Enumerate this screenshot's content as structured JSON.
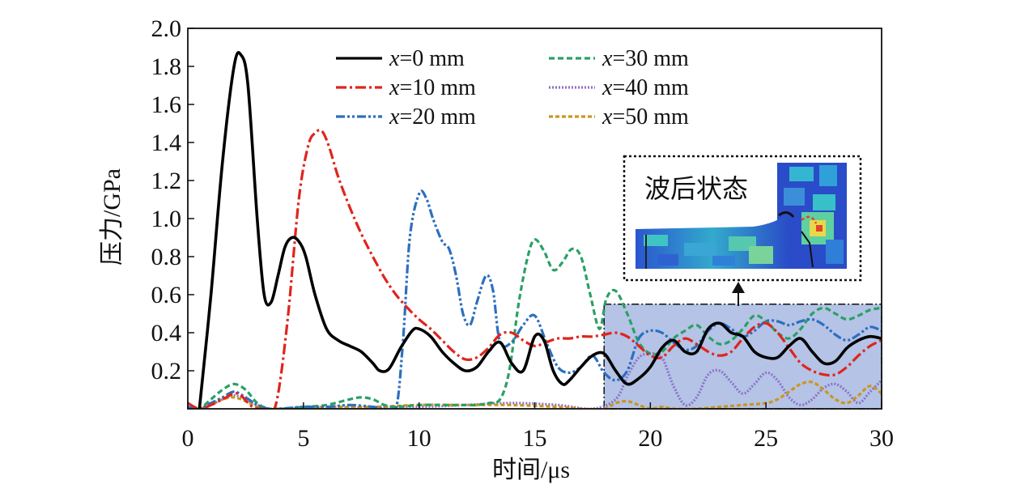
{
  "chart_data": {
    "type": "line",
    "xlabel": "时间/μs",
    "ylabel": "压力/GPa",
    "xlim": [
      0,
      30
    ],
    "ylim": [
      0,
      2.0
    ],
    "x_ticks": [
      "0",
      "5",
      "10",
      "15",
      "20",
      "25",
      "30"
    ],
    "y_ticks": [
      "0.2",
      "0.4",
      "0.6",
      "0.8",
      "1.0",
      "1.2",
      "1.4",
      "1.6",
      "1.8",
      "2.0"
    ],
    "grid": false,
    "legend_position": "top",
    "legend_var": "x",
    "legend_unit": "mm",
    "highlight_region": {
      "x": [
        18,
        30
      ],
      "y": [
        0,
        0.55
      ],
      "color": "#b4c3e6"
    },
    "inset_label": "波后状态",
    "series": [
      {
        "name": "x=0 mm",
        "value": "0",
        "color": "#000000",
        "dash": "solid",
        "x": [
          0.5,
          1.0,
          1.5,
          2.0,
          2.3,
          2.6,
          3.0,
          3.3,
          3.6,
          3.9,
          4.2,
          4.5,
          4.8,
          5.1,
          5.5,
          6.0,
          6.5,
          7.0,
          7.5,
          8.0,
          8.3,
          8.7,
          9.2,
          9.7,
          10.0,
          10.5,
          11.0,
          11.5,
          12.0,
          12.5,
          13.0,
          13.5,
          14.0,
          14.5,
          15.0,
          15.4,
          15.8,
          16.2,
          16.5,
          17.0,
          17.5,
          18.0,
          18.5,
          19.0,
          19.5,
          20.0,
          20.5,
          21.0,
          21.5,
          22.0,
          22.5,
          23.0,
          23.5,
          24.0,
          24.5,
          25.0,
          25.5,
          26.0,
          26.5,
          27.0,
          27.5,
          28.0,
          28.5,
          29.0,
          29.5,
          30.0
        ],
        "y": [
          0.0,
          0.6,
          1.3,
          1.8,
          1.86,
          1.7,
          1.0,
          0.6,
          0.56,
          0.7,
          0.85,
          0.9,
          0.88,
          0.8,
          0.6,
          0.42,
          0.36,
          0.33,
          0.3,
          0.24,
          0.2,
          0.21,
          0.32,
          0.41,
          0.42,
          0.38,
          0.3,
          0.24,
          0.2,
          0.22,
          0.3,
          0.35,
          0.24,
          0.2,
          0.38,
          0.36,
          0.2,
          0.13,
          0.15,
          0.22,
          0.28,
          0.29,
          0.2,
          0.13,
          0.16,
          0.22,
          0.32,
          0.36,
          0.3,
          0.3,
          0.42,
          0.45,
          0.4,
          0.38,
          0.3,
          0.27,
          0.27,
          0.33,
          0.37,
          0.3,
          0.24,
          0.25,
          0.32,
          0.36,
          0.38,
          0.37
        ]
      },
      {
        "name": "x=10 mm",
        "value": "10",
        "color": "#e0241c",
        "dash": "dashdot",
        "x": [
          0.0,
          0.5,
          1.0,
          1.5,
          2.0,
          2.3,
          2.8,
          3.3,
          3.8,
          4.3,
          4.8,
          5.2,
          5.5,
          5.8,
          6.1,
          6.5,
          7.0,
          7.5,
          8.0,
          8.5,
          9.0,
          9.5,
          10.0,
          10.5,
          11.0,
          11.5,
          12.0,
          12.5,
          13.0,
          13.5,
          14.0,
          14.5,
          15.0,
          15.5,
          16.0,
          16.5,
          17.0,
          17.5,
          18.0,
          18.5,
          19.0,
          19.5,
          20.0,
          20.5,
          21.0,
          21.5,
          22.0,
          22.5,
          23.0,
          23.5,
          24.0,
          24.5,
          25.0,
          25.5,
          26.0,
          26.5,
          27.0,
          27.5,
          28.0,
          28.5,
          29.0,
          29.5,
          30.0
        ],
        "y": [
          0.03,
          0.0,
          0.02,
          0.05,
          0.08,
          0.07,
          0.01,
          0.0,
          0.02,
          0.45,
          1.1,
          1.38,
          1.45,
          1.46,
          1.38,
          1.22,
          1.06,
          0.92,
          0.8,
          0.69,
          0.6,
          0.53,
          0.47,
          0.42,
          0.36,
          0.3,
          0.26,
          0.27,
          0.32,
          0.39,
          0.4,
          0.36,
          0.33,
          0.35,
          0.37,
          0.37,
          0.38,
          0.38,
          0.39,
          0.4,
          0.38,
          0.33,
          0.28,
          0.27,
          0.33,
          0.37,
          0.34,
          0.3,
          0.28,
          0.3,
          0.37,
          0.43,
          0.45,
          0.4,
          0.32,
          0.24,
          0.2,
          0.18,
          0.18,
          0.22,
          0.28,
          0.33,
          0.36
        ]
      },
      {
        "name": "x=20 mm",
        "value": "20",
        "color": "#2c6fc0",
        "dash": "dashdotdot",
        "x": [
          0.0,
          0.5,
          1.0,
          1.5,
          2.0,
          2.5,
          3.0,
          3.5,
          4.0,
          5.0,
          6.0,
          7.0,
          8.0,
          8.5,
          9.0,
          9.3,
          9.6,
          10.0,
          10.3,
          10.6,
          11.0,
          11.3,
          11.6,
          11.9,
          12.2,
          12.5,
          12.9,
          13.2,
          13.5,
          14.0,
          14.5,
          15.0,
          15.5,
          16.0,
          16.5,
          17.0,
          17.5,
          18.0,
          18.5,
          19.0,
          19.5,
          20.0,
          20.5,
          21.0,
          21.5,
          22.0,
          22.5,
          23.0,
          23.5,
          24.0,
          24.5,
          25.0,
          25.5,
          26.0,
          26.5,
          27.0,
          27.5,
          28.0,
          28.5,
          29.0,
          29.5,
          30.0
        ],
        "y": [
          0.01,
          0.0,
          0.03,
          0.06,
          0.09,
          0.06,
          0.02,
          0.0,
          0.0,
          0.01,
          0.01,
          0.02,
          0.01,
          0.0,
          0.0,
          0.35,
          0.9,
          1.13,
          1.11,
          1.0,
          0.88,
          0.84,
          0.7,
          0.5,
          0.44,
          0.56,
          0.7,
          0.62,
          0.35,
          0.35,
          0.44,
          0.49,
          0.35,
          0.22,
          0.19,
          0.22,
          0.28,
          0.19,
          0.15,
          0.2,
          0.37,
          0.41,
          0.4,
          0.35,
          0.31,
          0.33,
          0.41,
          0.45,
          0.42,
          0.38,
          0.41,
          0.46,
          0.46,
          0.44,
          0.46,
          0.47,
          0.44,
          0.39,
          0.36,
          0.39,
          0.43,
          0.41
        ]
      },
      {
        "name": "x=30 mm",
        "value": "30",
        "color": "#2aa065",
        "dash": "dashed",
        "x": [
          0.0,
          0.5,
          1.0,
          1.5,
          2.0,
          2.5,
          3.0,
          3.5,
          4.0,
          5.0,
          6.0,
          7.0,
          7.5,
          8.0,
          8.5,
          9.0,
          10.0,
          11.0,
          12.0,
          12.5,
          13.0,
          13.5,
          13.9,
          14.3,
          14.7,
          15.0,
          15.4,
          15.8,
          16.2,
          16.6,
          17.0,
          17.4,
          17.8,
          18.1,
          18.5,
          19.0,
          19.5,
          20.0,
          20.5,
          21.0,
          21.5,
          22.0,
          22.5,
          23.0,
          23.5,
          24.0,
          24.5,
          25.0,
          25.5,
          26.0,
          26.5,
          27.0,
          27.5,
          28.0,
          28.5,
          29.0,
          29.5,
          30.0
        ],
        "y": [
          0.0,
          0.0,
          0.05,
          0.1,
          0.13,
          0.1,
          0.03,
          0.0,
          0.0,
          0.01,
          0.02,
          0.05,
          0.06,
          0.05,
          0.02,
          0.01,
          0.02,
          0.02,
          0.02,
          0.02,
          0.03,
          0.05,
          0.2,
          0.55,
          0.8,
          0.89,
          0.83,
          0.73,
          0.77,
          0.84,
          0.8,
          0.6,
          0.42,
          0.58,
          0.62,
          0.5,
          0.35,
          0.29,
          0.3,
          0.37,
          0.41,
          0.44,
          0.38,
          0.34,
          0.36,
          0.42,
          0.49,
          0.46,
          0.4,
          0.37,
          0.42,
          0.5,
          0.53,
          0.5,
          0.47,
          0.49,
          0.52,
          0.53
        ]
      },
      {
        "name": "x=40 mm",
        "value": "40",
        "color": "#8c72c8",
        "dash": "dotted",
        "x": [
          0.0,
          0.5,
          1.0,
          1.5,
          2.0,
          2.5,
          3.0,
          3.5,
          4.0,
          6.0,
          8.0,
          10.0,
          12.0,
          14.0,
          16.0,
          17.5,
          18.5,
          19.0,
          19.5,
          20.0,
          20.5,
          21.0,
          21.5,
          22.0,
          22.5,
          23.0,
          23.5,
          24.0,
          24.5,
          25.0,
          25.5,
          26.0,
          26.5,
          27.0,
          27.5,
          28.0,
          28.5,
          29.0,
          29.5,
          30.0
        ],
        "y": [
          0.0,
          0.0,
          0.02,
          0.05,
          0.07,
          0.05,
          0.02,
          0.0,
          0.0,
          0.0,
          0.01,
          0.01,
          0.02,
          0.03,
          0.02,
          0.0,
          0.05,
          0.17,
          0.27,
          0.29,
          0.27,
          0.12,
          0.02,
          0.06,
          0.18,
          0.2,
          0.14,
          0.08,
          0.13,
          0.19,
          0.15,
          0.06,
          0.02,
          0.05,
          0.11,
          0.13,
          0.09,
          0.03,
          0.09,
          0.15
        ]
      },
      {
        "name": "x=50 mm",
        "value": "50",
        "color": "#c9961e",
        "dash": "dashed-fine",
        "x": [
          0.0,
          0.5,
          1.0,
          1.5,
          2.0,
          2.5,
          3.0,
          3.5,
          4.0,
          6.0,
          8.0,
          10.0,
          12.0,
          14.0,
          16.0,
          17.0,
          18.0,
          18.5,
          19.0,
          19.5,
          20.0,
          20.5,
          21.0,
          22.0,
          23.0,
          24.0,
          25.0,
          25.5,
          26.0,
          26.5,
          27.0,
          27.5,
          28.0,
          28.5,
          29.0,
          29.5,
          30.0
        ],
        "y": [
          0.0,
          0.0,
          0.02,
          0.05,
          0.06,
          0.04,
          0.01,
          0.0,
          0.0,
          0.01,
          0.01,
          0.02,
          0.02,
          0.02,
          0.01,
          0.0,
          0.0,
          0.03,
          0.04,
          0.02,
          0.0,
          0.01,
          0.0,
          0.0,
          0.01,
          0.02,
          0.03,
          0.05,
          0.09,
          0.13,
          0.14,
          0.1,
          0.05,
          0.03,
          0.07,
          0.12,
          0.08
        ]
      }
    ]
  }
}
